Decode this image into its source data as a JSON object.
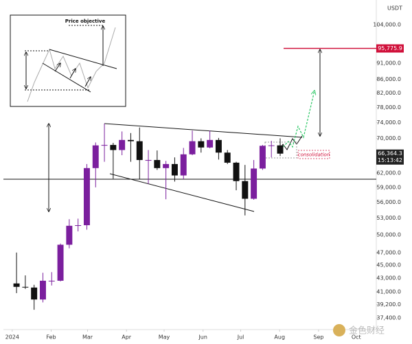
{
  "chart_data": {
    "type": "candlestick",
    "unit": "USDT",
    "log_scale": true,
    "up_color": "#7b1f9e",
    "down_color": "#111111",
    "x": [
      0,
      7,
      14,
      21,
      28,
      35,
      42,
      49,
      56,
      63,
      70,
      77,
      84,
      91,
      98,
      105,
      112,
      119,
      126,
      133,
      140,
      147,
      154,
      161,
      168,
      175,
      182,
      189,
      196,
      203,
      210
    ],
    "open": [
      42200,
      41700,
      41600,
      39900,
      42600,
      42600,
      48300,
      51600,
      51700,
      63100,
      68300,
      68400,
      67200,
      69600,
      69300,
      64900,
      64900,
      63100,
      64000,
      61500,
      66200,
      69300,
      67800,
      69600,
      66600,
      64300,
      60300,
      56700,
      63000,
      68200,
      68300
    ],
    "high": [
      47000,
      43400,
      42000,
      43800,
      43900,
      48500,
      52800,
      52900,
      64000,
      69000,
      73700,
      68900,
      71700,
      71300,
      72700,
      67200,
      67100,
      64700,
      65500,
      67700,
      71900,
      70000,
      71900,
      70100,
      67200,
      64500,
      63800,
      64900,
      68400,
      69400,
      70000
    ],
    "low": [
      40800,
      41400,
      38500,
      39500,
      41900,
      42500,
      47700,
      50600,
      50900,
      59000,
      64500,
      60800,
      66000,
      64500,
      60700,
      59700,
      62700,
      56600,
      60200,
      60700,
      66000,
      66600,
      67600,
      65000,
      64000,
      58400,
      53500,
      56500,
      62700,
      65500,
      65800
    ],
    "close": [
      41700,
      41600,
      39900,
      42600,
      42600,
      48300,
      51600,
      51700,
      63100,
      68300,
      68400,
      67200,
      69600,
      69300,
      64900,
      64900,
      63100,
      64000,
      61500,
      66200,
      69300,
      67800,
      69600,
      66600,
      64300,
      60300,
      56700,
      63000,
      68200,
      68300,
      66364.3
    ],
    "xlim": [
      -7,
      290
    ],
    "xticks": [
      {
        "value": 0,
        "label": "2024"
      },
      {
        "value": 31,
        "label": "Feb"
      },
      {
        "value": 60,
        "label": "Mar"
      },
      {
        "value": 91,
        "label": "Apr"
      },
      {
        "value": 121,
        "label": "May"
      },
      {
        "value": 152,
        "label": "Jun"
      },
      {
        "value": 182,
        "label": "Jul"
      },
      {
        "value": 213,
        "label": "Aug"
      },
      {
        "value": 244,
        "label": "Sep"
      },
      {
        "value": 274,
        "label": "Oct"
      }
    ],
    "ylim": [
      36100,
      113400
    ],
    "yticks": [
      {
        "value": 104000,
        "label": "104,000.0"
      },
      {
        "value": 91000,
        "label": "91,000.0"
      },
      {
        "value": 86000,
        "label": "86,000.0"
      },
      {
        "value": 82000,
        "label": "82,000.0"
      },
      {
        "value": 78000,
        "label": "78,000.0"
      },
      {
        "value": 74000,
        "label": "74,000.0"
      },
      {
        "value": 70000,
        "label": "70,000.0"
      },
      {
        "value": 62000,
        "label": "62,000.0"
      },
      {
        "value": 59000,
        "label": "59,000.0"
      },
      {
        "value": 56000,
        "label": "56,000.0"
      },
      {
        "value": 53000,
        "label": "53,000.0"
      },
      {
        "value": 50000,
        "label": "50,000.0"
      },
      {
        "value": 47000,
        "label": "47,000.0"
      },
      {
        "value": 45000,
        "label": "45,000.0"
      },
      {
        "value": 43000,
        "label": "43,000.0"
      },
      {
        "value": 41000,
        "label": "41,000.0"
      },
      {
        "value": 39200,
        "label": "39,200.0"
      },
      {
        "value": 37400,
        "label": "37,400.0"
      }
    ],
    "price_target": {
      "value": 95775.9,
      "label": "95,775.9",
      "color": "#d0103a"
    },
    "last_price": {
      "value": 66364.3,
      "label": "66,364.3"
    },
    "countdown": "15:13:42",
    "annotation": "consolidation",
    "inset_title": "Price objective",
    "watermark": "金色财经"
  }
}
